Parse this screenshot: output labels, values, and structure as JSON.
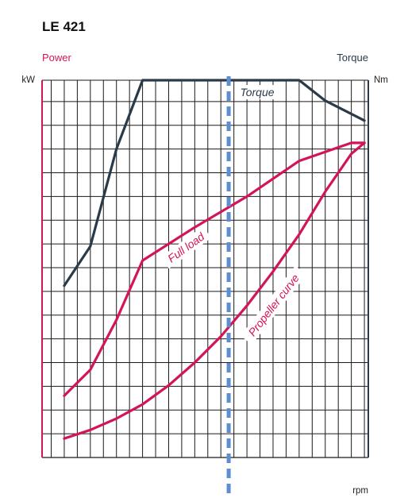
{
  "chart_data": {
    "type": "line",
    "title": "LE 421",
    "left_axis_label": "Power",
    "right_axis_label": "Torque",
    "left_unit": "kW",
    "right_unit": "Nm",
    "x_unit": "rpm",
    "x_ticks": [
      "700",
      "850",
      "1,000",
      "1,150",
      "1,300",
      "1,450",
      "1,600",
      "1,800"
    ],
    "x_tick_values": [
      700,
      850,
      1000,
      1150,
      1300,
      1450,
      1600,
      1800
    ],
    "xlim": [
      615,
      1865
    ],
    "y_left_ticks": [
      "0",
      "100",
      "200",
      "300",
      "400",
      "500",
      "600",
      "700"
    ],
    "y_left_tick_values": [
      0,
      100,
      200,
      300,
      400,
      500,
      600,
      700
    ],
    "ylim_left": [
      0,
      795
    ],
    "y_right_ticks": [
      "0",
      "500",
      "1,000",
      "1,500",
      "2,000",
      "2,500",
      "3,000",
      "3,500"
    ],
    "y_right_tick_values": [
      0,
      500,
      1000,
      1500,
      2000,
      2500,
      3000,
      3500
    ],
    "ylim_right": [
      0,
      3975
    ],
    "grid": true,
    "series": [
      {
        "name": "Full load",
        "axis": "left",
        "color": "#d4145a",
        "points": [
          [
            700,
            130
          ],
          [
            800,
            185
          ],
          [
            900,
            290
          ],
          [
            1000,
            415
          ],
          [
            1200,
            485
          ],
          [
            1400,
            550
          ],
          [
            1600,
            625
          ],
          [
            1800,
            663
          ],
          [
            1850,
            663
          ]
        ]
      },
      {
        "name": "Propeller curve",
        "axis": "left",
        "color": "#d4145a",
        "points": [
          [
            700,
            40
          ],
          [
            800,
            58
          ],
          [
            900,
            82
          ],
          [
            1000,
            112
          ],
          [
            1100,
            152
          ],
          [
            1200,
            200
          ],
          [
            1300,
            255
          ],
          [
            1400,
            320
          ],
          [
            1500,
            392
          ],
          [
            1600,
            470
          ],
          [
            1700,
            560
          ],
          [
            1800,
            640
          ],
          [
            1850,
            663
          ]
        ]
      },
      {
        "name": "Torque",
        "axis": "right",
        "color": "#2b3a48",
        "points": [
          [
            700,
            1810
          ],
          [
            800,
            2225
          ],
          [
            900,
            3250
          ],
          [
            1000,
            3975
          ],
          [
            1600,
            3975
          ],
          [
            1700,
            3760
          ],
          [
            1850,
            3550
          ]
        ]
      }
    ],
    "reference_line": {
      "x": 1330,
      "color": "#5b8fd1",
      "style": "dashed"
    },
    "annotations": [
      "Full load",
      "Propeller curve",
      "Torque"
    ],
    "colors": {
      "power": "#d4145a",
      "torque": "#2b3a48",
      "grid": "#1a1a1a",
      "reference": "#5b8fd1"
    }
  }
}
